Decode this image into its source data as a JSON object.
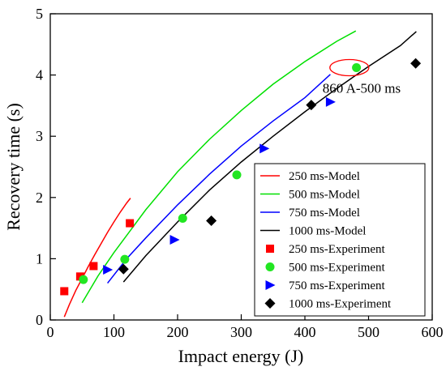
{
  "chart_data": {
    "type": "scatter",
    "title": "",
    "xlabel": "Impact energy (J)",
    "ylabel": "Recovery time (s)",
    "xlim": [
      0,
      600
    ],
    "ylim": [
      0,
      5
    ],
    "x_ticks": [
      "0",
      "100",
      "200",
      "300",
      "400",
      "500",
      "600"
    ],
    "y_ticks": [
      "0",
      "1",
      "2",
      "3",
      "4",
      "5"
    ],
    "grid": false,
    "legend_position": "bottom-right",
    "annotation": {
      "text": "860 A-500 ms",
      "x": 480,
      "y": 4.12
    },
    "series": [
      {
        "name": "250 ms-Model",
        "kind": "line",
        "color": "#ff0000",
        "x": [
          22,
          30,
          40,
          50,
          60,
          70,
          80,
          90,
          100,
          110,
          120,
          126
        ],
        "y": [
          0.05,
          0.25,
          0.48,
          0.68,
          0.88,
          1.07,
          1.25,
          1.43,
          1.6,
          1.76,
          1.91,
          1.99
        ]
      },
      {
        "name": "500 ms-Model",
        "kind": "line",
        "color": "#00e000",
        "x": [
          50,
          75,
          100,
          125,
          150,
          200,
          250,
          300,
          350,
          400,
          450,
          480
        ],
        "y": [
          0.28,
          0.72,
          1.1,
          1.45,
          1.8,
          2.42,
          2.95,
          3.42,
          3.85,
          4.22,
          4.55,
          4.72
        ]
      },
      {
        "name": "750 ms-Model",
        "kind": "line",
        "color": "#0000ff",
        "x": [
          90,
          120,
          150,
          200,
          250,
          300,
          350,
          400,
          440
        ],
        "y": [
          0.6,
          1.0,
          1.34,
          1.88,
          2.38,
          2.84,
          3.25,
          3.63,
          4.01
        ]
      },
      {
        "name": "1000 ms-Model",
        "kind": "line",
        "color": "#000000",
        "x": [
          115,
          150,
          200,
          250,
          300,
          350,
          400,
          450,
          500,
          550,
          575
        ],
        "y": [
          0.62,
          1.05,
          1.6,
          2.12,
          2.58,
          3.0,
          3.4,
          3.78,
          4.14,
          4.48,
          4.71
        ]
      },
      {
        "name": "250 ms-Experiment",
        "kind": "marker",
        "marker": "square",
        "color": "#ff0000",
        "x": [
          22,
          47,
          68,
          125
        ],
        "y": [
          0.47,
          0.71,
          0.88,
          1.58
        ]
      },
      {
        "name": "500 ms-Experiment",
        "kind": "marker",
        "marker": "circle",
        "color": "#22e622",
        "x": [
          52,
          117,
          208,
          293,
          481
        ],
        "y": [
          0.66,
          0.99,
          1.66,
          2.37,
          4.12
        ]
      },
      {
        "name": "750 ms-Experiment",
        "kind": "marker",
        "marker": "triangle-right",
        "color": "#0000ff",
        "x": [
          90,
          195,
          336,
          440
        ],
        "y": [
          0.82,
          1.31,
          2.8,
          3.56
        ]
      },
      {
        "name": "1000 ms-Experiment",
        "kind": "marker",
        "marker": "diamond",
        "color": "#000000",
        "x": [
          115,
          253,
          410,
          574
        ],
        "y": [
          0.83,
          1.62,
          3.51,
          4.19
        ]
      }
    ]
  }
}
